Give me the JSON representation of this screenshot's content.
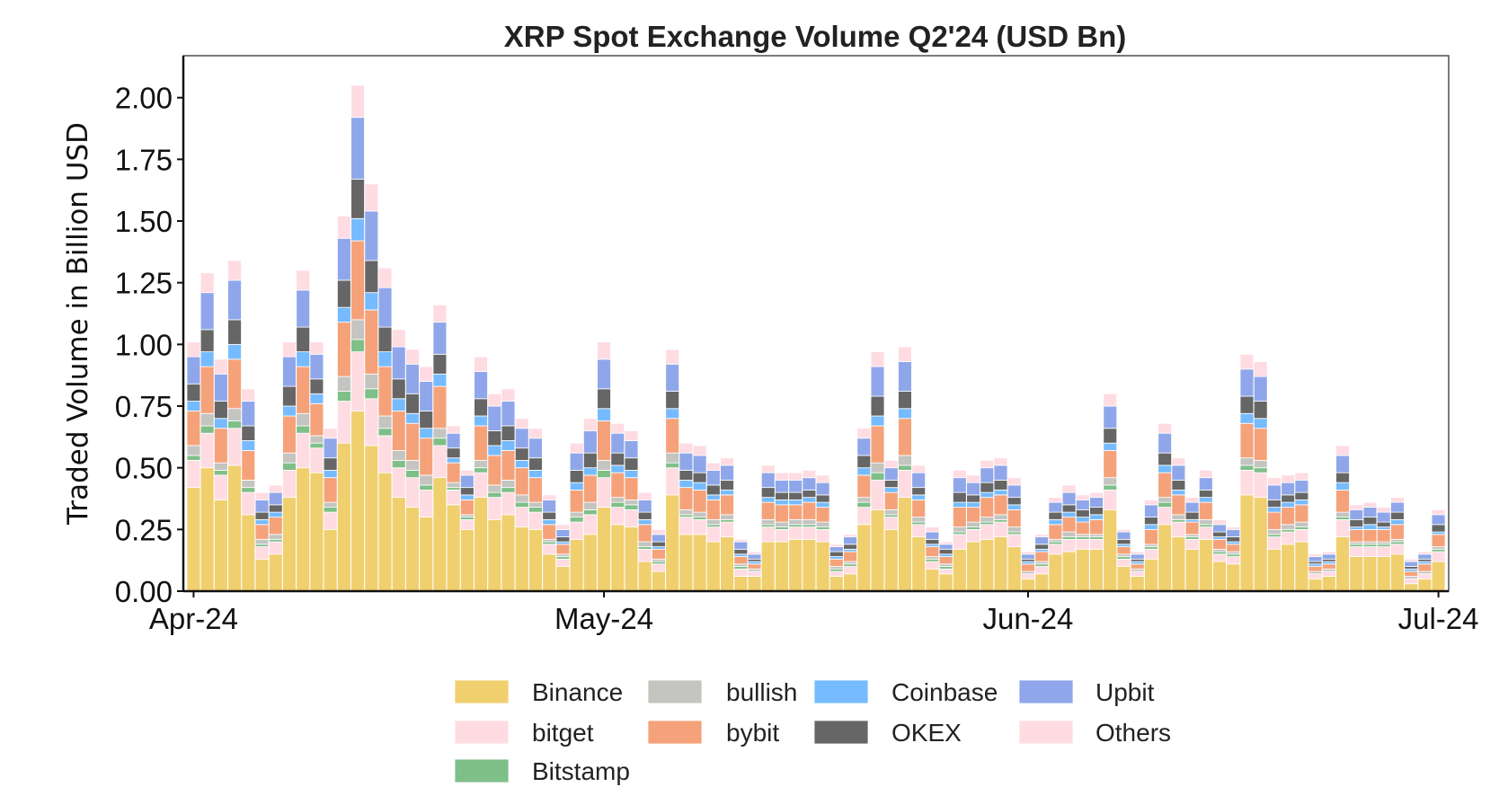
{
  "chart_data": {
    "type": "bar",
    "stacked": true,
    "title": "XRP Spot Exchange Volume Q2'24 (USD Bn)",
    "xlabel": "",
    "ylabel": "Traded Volume in Billion USD",
    "x_range": [
      "2024-04-01",
      "2024-07-01"
    ],
    "x_interval": "daily",
    "ylim": [
      0,
      2.17
    ],
    "yticks": [
      "0.00",
      "0.25",
      "0.50",
      "0.75",
      "1.00",
      "1.25",
      "1.50",
      "1.75",
      "2.00"
    ],
    "xticks": [
      {
        "date": "2024-04-01",
        "label": "Apr-24"
      },
      {
        "date": "2024-05-01",
        "label": "May-24"
      },
      {
        "date": "2024-06-01",
        "label": "Jun-24"
      },
      {
        "date": "2024-07-01",
        "label": "Jul-24"
      }
    ],
    "grid": false,
    "legend_position": "bottom-center",
    "series": [
      {
        "name": "Binance",
        "color": "#f0cf6e",
        "values": [
          0.42,
          0.5,
          0.37,
          0.51,
          0.31,
          0.13,
          0.15,
          0.38,
          0.5,
          0.48,
          0.25,
          0.6,
          0.73,
          0.59,
          0.48,
          0.38,
          0.34,
          0.3,
          0.46,
          0.35,
          0.25,
          0.38,
          0.29,
          0.31,
          0.26,
          0.25,
          0.15,
          0.1,
          0.21,
          0.23,
          0.34,
          0.27,
          0.26,
          0.12,
          0.08,
          0.39,
          0.23,
          0.23,
          0.2,
          0.22,
          0.06,
          0.06,
          0.2,
          0.2,
          0.21,
          0.21,
          0.2,
          0.06,
          0.07,
          0.27,
          0.33,
          0.25,
          0.38,
          0.22,
          0.09,
          0.07,
          0.17,
          0.2,
          0.21,
          0.22,
          0.18,
          0.05,
          0.07,
          0.15,
          0.16,
          0.17,
          0.17,
          0.33,
          0.1,
          0.06,
          0.13,
          0.27,
          0.22,
          0.17,
          0.21,
          0.12,
          0.11,
          0.39,
          0.38,
          0.17,
          0.19,
          0.2,
          0.05,
          0.06,
          0.22,
          0.14,
          0.14,
          0.14,
          0.15,
          0.03,
          0.05,
          0.12
        ]
      },
      {
        "name": "bitget",
        "color": "#ffdbe2",
        "values": [
          0.11,
          0.14,
          0.1,
          0.15,
          0.09,
          0.05,
          0.05,
          0.11,
          0.14,
          0.1,
          0.07,
          0.17,
          0.24,
          0.19,
          0.15,
          0.12,
          0.12,
          0.11,
          0.13,
          0.06,
          0.04,
          0.1,
          0.09,
          0.09,
          0.08,
          0.07,
          0.04,
          0.03,
          0.07,
          0.08,
          0.12,
          0.07,
          0.07,
          0.05,
          0.03,
          0.11,
          0.07,
          0.06,
          0.06,
          0.06,
          0.03,
          0.02,
          0.06,
          0.05,
          0.05,
          0.05,
          0.05,
          0.02,
          0.03,
          0.07,
          0.12,
          0.05,
          0.11,
          0.05,
          0.03,
          0.02,
          0.06,
          0.05,
          0.06,
          0.06,
          0.05,
          0.02,
          0.03,
          0.04,
          0.05,
          0.04,
          0.04,
          0.08,
          0.03,
          0.02,
          0.04,
          0.07,
          0.06,
          0.04,
          0.05,
          0.03,
          0.03,
          0.1,
          0.1,
          0.05,
          0.05,
          0.05,
          0.02,
          0.02,
          0.07,
          0.04,
          0.04,
          0.04,
          0.04,
          0.02,
          0.02,
          0.04
        ]
      },
      {
        "name": "Bitstamp",
        "color": "#7fbf88",
        "values": [
          0.02,
          0.03,
          0.02,
          0.03,
          0.02,
          0.01,
          0.01,
          0.03,
          0.03,
          0.02,
          0.02,
          0.04,
          0.05,
          0.04,
          0.03,
          0.03,
          0.03,
          0.02,
          0.03,
          0.01,
          0.01,
          0.02,
          0.02,
          0.02,
          0.02,
          0.02,
          0.01,
          0.01,
          0.02,
          0.02,
          0.03,
          0.02,
          0.02,
          0.01,
          0.01,
          0.02,
          0.01,
          0.01,
          0.01,
          0.01,
          0.01,
          0.0,
          0.01,
          0.01,
          0.01,
          0.01,
          0.01,
          0.01,
          0.01,
          0.02,
          0.03,
          0.01,
          0.02,
          0.01,
          0.01,
          0.01,
          0.01,
          0.01,
          0.01,
          0.01,
          0.01,
          0.0,
          0.01,
          0.01,
          0.01,
          0.01,
          0.01,
          0.02,
          0.01,
          0.0,
          0.01,
          0.02,
          0.01,
          0.01,
          0.01,
          0.01,
          0.01,
          0.02,
          0.02,
          0.01,
          0.01,
          0.01,
          0.0,
          0.0,
          0.01,
          0.01,
          0.01,
          0.01,
          0.01,
          0.0,
          0.0,
          0.01
        ]
      },
      {
        "name": "bullish",
        "color": "#c4c4c0",
        "values": [
          0.04,
          0.05,
          0.03,
          0.05,
          0.03,
          0.02,
          0.02,
          0.04,
          0.05,
          0.03,
          0.02,
          0.06,
          0.08,
          0.06,
          0.05,
          0.04,
          0.04,
          0.04,
          0.04,
          0.02,
          0.01,
          0.03,
          0.03,
          0.03,
          0.03,
          0.02,
          0.01,
          0.01,
          0.02,
          0.03,
          0.04,
          0.02,
          0.02,
          0.02,
          0.01,
          0.04,
          0.02,
          0.02,
          0.02,
          0.02,
          0.01,
          0.01,
          0.02,
          0.02,
          0.02,
          0.02,
          0.02,
          0.01,
          0.01,
          0.02,
          0.04,
          0.02,
          0.04,
          0.02,
          0.01,
          0.01,
          0.02,
          0.02,
          0.02,
          0.02,
          0.02,
          0.01,
          0.01,
          0.01,
          0.02,
          0.01,
          0.01,
          0.03,
          0.01,
          0.01,
          0.01,
          0.02,
          0.02,
          0.01,
          0.02,
          0.01,
          0.01,
          0.03,
          0.03,
          0.02,
          0.02,
          0.02,
          0.01,
          0.01,
          0.02,
          0.01,
          0.01,
          0.01,
          0.01,
          0.01,
          0.01,
          0.01
        ]
      },
      {
        "name": "bybit",
        "color": "#f5a27a",
        "values": [
          0.14,
          0.19,
          0.14,
          0.2,
          0.12,
          0.06,
          0.07,
          0.15,
          0.19,
          0.13,
          0.1,
          0.22,
          0.32,
          0.26,
          0.2,
          0.16,
          0.15,
          0.15,
          0.17,
          0.08,
          0.06,
          0.14,
          0.12,
          0.12,
          0.11,
          0.1,
          0.06,
          0.04,
          0.09,
          0.11,
          0.16,
          0.1,
          0.09,
          0.07,
          0.04,
          0.14,
          0.09,
          0.09,
          0.08,
          0.08,
          0.03,
          0.02,
          0.07,
          0.07,
          0.06,
          0.07,
          0.06,
          0.03,
          0.04,
          0.09,
          0.15,
          0.07,
          0.15,
          0.07,
          0.04,
          0.03,
          0.08,
          0.06,
          0.08,
          0.08,
          0.07,
          0.03,
          0.04,
          0.06,
          0.06,
          0.05,
          0.06,
          0.11,
          0.03,
          0.02,
          0.06,
          0.1,
          0.08,
          0.05,
          0.07,
          0.04,
          0.03,
          0.14,
          0.13,
          0.07,
          0.07,
          0.07,
          0.02,
          0.02,
          0.09,
          0.05,
          0.05,
          0.05,
          0.06,
          0.02,
          0.03,
          0.05
        ]
      },
      {
        "name": "Coinbase",
        "color": "#76bbff",
        "values": [
          0.04,
          0.06,
          0.04,
          0.06,
          0.04,
          0.02,
          0.02,
          0.04,
          0.06,
          0.04,
          0.03,
          0.06,
          0.09,
          0.07,
          0.06,
          0.05,
          0.04,
          0.04,
          0.05,
          0.02,
          0.02,
          0.04,
          0.04,
          0.04,
          0.03,
          0.03,
          0.02,
          0.01,
          0.03,
          0.03,
          0.05,
          0.03,
          0.03,
          0.02,
          0.01,
          0.04,
          0.03,
          0.03,
          0.02,
          0.02,
          0.01,
          0.01,
          0.02,
          0.02,
          0.02,
          0.02,
          0.02,
          0.01,
          0.01,
          0.03,
          0.04,
          0.02,
          0.04,
          0.02,
          0.01,
          0.01,
          0.02,
          0.02,
          0.02,
          0.02,
          0.02,
          0.01,
          0.01,
          0.02,
          0.02,
          0.02,
          0.02,
          0.03,
          0.01,
          0.01,
          0.02,
          0.03,
          0.02,
          0.01,
          0.02,
          0.01,
          0.01,
          0.04,
          0.04,
          0.02,
          0.02,
          0.02,
          0.01,
          0.01,
          0.03,
          0.01,
          0.02,
          0.01,
          0.02,
          0.01,
          0.01,
          0.01
        ]
      },
      {
        "name": "OKEX",
        "color": "#666666",
        "values": [
          0.07,
          0.09,
          0.07,
          0.1,
          0.06,
          0.03,
          0.03,
          0.08,
          0.1,
          0.06,
          0.05,
          0.11,
          0.16,
          0.13,
          0.1,
          0.08,
          0.08,
          0.07,
          0.08,
          0.04,
          0.03,
          0.07,
          0.06,
          0.06,
          0.05,
          0.05,
          0.03,
          0.02,
          0.05,
          0.06,
          0.08,
          0.05,
          0.05,
          0.03,
          0.02,
          0.07,
          0.04,
          0.04,
          0.04,
          0.04,
          0.02,
          0.01,
          0.04,
          0.03,
          0.03,
          0.03,
          0.03,
          0.02,
          0.02,
          0.05,
          0.08,
          0.03,
          0.07,
          0.03,
          0.02,
          0.02,
          0.04,
          0.03,
          0.04,
          0.04,
          0.03,
          0.01,
          0.02,
          0.03,
          0.03,
          0.03,
          0.03,
          0.06,
          0.02,
          0.01,
          0.03,
          0.05,
          0.04,
          0.03,
          0.03,
          0.02,
          0.02,
          0.07,
          0.07,
          0.03,
          0.03,
          0.03,
          0.01,
          0.01,
          0.04,
          0.03,
          0.03,
          0.02,
          0.03,
          0.01,
          0.01,
          0.03
        ]
      },
      {
        "name": "Upbit",
        "color": "#8fa7ea",
        "values": [
          0.11,
          0.15,
          0.11,
          0.16,
          0.1,
          0.05,
          0.05,
          0.12,
          0.15,
          0.1,
          0.08,
          0.17,
          0.25,
          0.2,
          0.16,
          0.13,
          0.12,
          0.12,
          0.13,
          0.06,
          0.05,
          0.11,
          0.1,
          0.1,
          0.08,
          0.08,
          0.05,
          0.03,
          0.07,
          0.09,
          0.12,
          0.08,
          0.07,
          0.05,
          0.03,
          0.11,
          0.07,
          0.07,
          0.06,
          0.06,
          0.03,
          0.02,
          0.06,
          0.05,
          0.05,
          0.05,
          0.05,
          0.02,
          0.03,
          0.07,
          0.12,
          0.05,
          0.12,
          0.06,
          0.03,
          0.02,
          0.06,
          0.05,
          0.06,
          0.06,
          0.05,
          0.02,
          0.03,
          0.04,
          0.05,
          0.04,
          0.04,
          0.09,
          0.03,
          0.02,
          0.05,
          0.08,
          0.06,
          0.04,
          0.05,
          0.03,
          0.03,
          0.11,
          0.1,
          0.06,
          0.05,
          0.05,
          0.02,
          0.02,
          0.07,
          0.04,
          0.04,
          0.04,
          0.04,
          0.02,
          0.02,
          0.04
        ]
      },
      {
        "name": "Others",
        "color": "#ffdbe2",
        "values": [
          0.06,
          0.08,
          0.06,
          0.08,
          0.05,
          0.03,
          0.03,
          0.06,
          0.08,
          0.05,
          0.04,
          0.09,
          0.13,
          0.11,
          0.08,
          0.07,
          0.06,
          0.06,
          0.07,
          0.03,
          0.02,
          0.06,
          0.05,
          0.05,
          0.04,
          0.04,
          0.02,
          0.02,
          0.04,
          0.05,
          0.07,
          0.04,
          0.04,
          0.03,
          0.02,
          0.06,
          0.04,
          0.04,
          0.03,
          0.03,
          0.01,
          0.01,
          0.03,
          0.03,
          0.03,
          0.03,
          0.03,
          0.01,
          0.01,
          0.04,
          0.06,
          0.03,
          0.06,
          0.03,
          0.02,
          0.01,
          0.03,
          0.03,
          0.03,
          0.03,
          0.03,
          0.01,
          0.01,
          0.02,
          0.03,
          0.02,
          0.02,
          0.05,
          0.01,
          0.01,
          0.02,
          0.04,
          0.03,
          0.02,
          0.03,
          0.02,
          0.01,
          0.06,
          0.06,
          0.03,
          0.03,
          0.03,
          0.01,
          0.01,
          0.04,
          0.02,
          0.02,
          0.02,
          0.02,
          0.01,
          0.01,
          0.02
        ]
      }
    ],
    "legend": {
      "columns": [
        [
          "Binance",
          "bitget",
          "Bitstamp"
        ],
        [
          "bullish",
          "bybit"
        ],
        [
          "Coinbase",
          "OKEX"
        ],
        [
          "Upbit",
          "Others"
        ]
      ]
    }
  }
}
